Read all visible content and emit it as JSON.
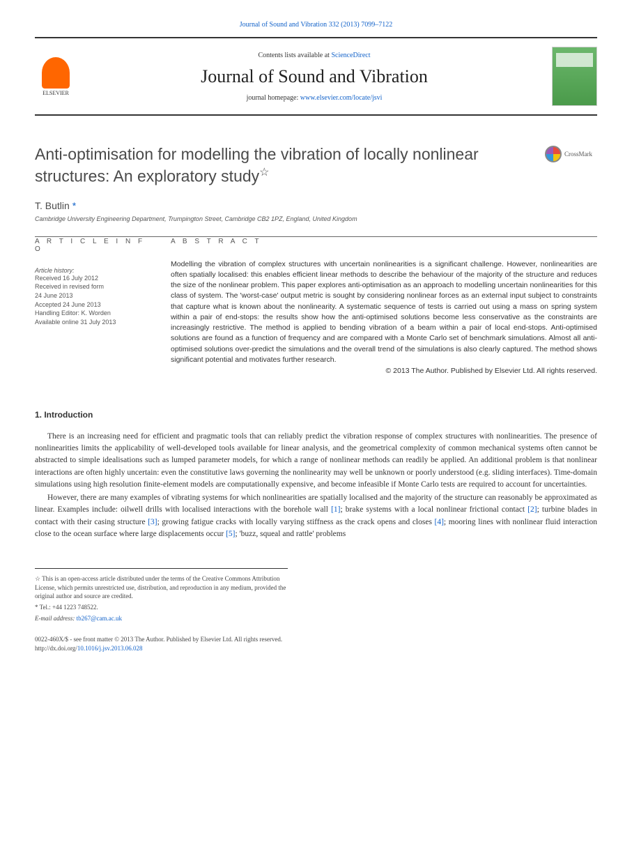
{
  "top_link": "Journal of Sound and Vibration 332 (2013) 7099–7122",
  "header": {
    "contents_prefix": "Contents lists available at ",
    "contents_link": "ScienceDirect",
    "journal_name": "Journal of Sound and Vibration",
    "homepage_prefix": "journal homepage: ",
    "homepage_link": "www.elsevier.com/locate/jsvi",
    "publisher": "ELSEVIER",
    "cover_label": "JOURNAL OF SOUND AND VIBRATION"
  },
  "article": {
    "title": "Anti-optimisation for modelling the vibration of locally nonlinear structures: An exploratory study",
    "title_star": "☆",
    "crossmark_label": "CrossMark",
    "author": "T. Butlin",
    "author_mark": "*",
    "affiliation": "Cambridge University Engineering Department, Trumpington Street, Cambridge CB2 1PZ, England, United Kingdom"
  },
  "info": {
    "heading": "A R T I C L E   I N F O",
    "history_label": "Article history:",
    "received": "Received 16 July 2012",
    "revised1": "Received in revised form",
    "revised2": "24 June 2013",
    "accepted": "Accepted 24 June 2013",
    "editor": "Handling Editor: K. Worden",
    "online": "Available online 31 July 2013"
  },
  "abstract": {
    "heading": "A B S T R A C T",
    "text": "Modelling the vibration of complex structures with uncertain nonlinearities is a significant challenge. However, nonlinearities are often spatially localised: this enables efficient linear methods to describe the behaviour of the majority of the structure and reduces the size of the nonlinear problem. This paper explores anti-optimisation as an approach to modelling uncertain nonlinearities for this class of system. The 'worst-case' output metric is sought by considering nonlinear forces as an external input subject to constraints that capture what is known about the nonlinearity. A systematic sequence of tests is carried out using a mass on spring system within a pair of end-stops: the results show how the anti-optimised solutions become less conservative as the constraints are increasingly restrictive. The method is applied to bending vibration of a beam within a pair of local end-stops. Anti-optimised solutions are found as a function of frequency and are compared with a Monte Carlo set of benchmark simulations. Almost all anti-optimised solutions over-predict the simulations and the overall trend of the simulations is also clearly captured. The method shows significant potential and motivates further research.",
    "copyright": "© 2013 The Author. Published by Elsevier Ltd. All rights reserved."
  },
  "sections": {
    "intro_heading": "1.  Introduction",
    "intro_p1_a": "There is an increasing need for efficient and pragmatic tools that can reliably predict the vibration response of complex structures with nonlinearities. The presence of nonlinearities limits the applicability of well-developed tools available for linear analysis, and the geometrical complexity of common mechanical systems often cannot be abstracted to simple idealisations such as lumped parameter models, for which a range of nonlinear methods can readily be applied. An additional problem is that nonlinear interactions are often highly uncertain: even the constitutive laws governing the nonlinearity may well be unknown or poorly understood (e.g. sliding interfaces). Time-domain simulations using high resolution finite-element models are computationally expensive, and become infeasible if Monte Carlo tests are required to account for uncertainties.",
    "intro_p2_a": "However, there are many examples of vibrating systems for which nonlinearities are spatially localised and the majority of the structure can reasonably be approximated as linear. Examples include: oilwell drills with localised interactions with the borehole wall ",
    "intro_p2_b": "; brake systems with a local nonlinear frictional contact ",
    "intro_p2_c": "; turbine blades in contact with their casing structure ",
    "intro_p2_d": "; growing fatigue cracks with locally varying stiffness as the crack opens and closes ",
    "intro_p2_e": "; mooring lines with nonlinear fluid interaction close to the ocean surface where large displacements occur ",
    "intro_p2_f": "; 'buzz, squeal and rattle' problems",
    "ref1": "[1]",
    "ref2": "[2]",
    "ref3": "[3]",
    "ref4": "[4]",
    "ref5": "[5]"
  },
  "footnotes": {
    "open_access": "☆ This is an open-access article distributed under the terms of the Creative Commons Attribution License, which permits unrestricted use, distribution, and reproduction in any medium, provided the original author and source are credited.",
    "tel_label": "* Tel.: ",
    "tel": "+44 1223 748522.",
    "email_label": "E-mail address: ",
    "email": "tb267@cam.ac.uk"
  },
  "footer": {
    "issn_line": "0022-460X/$ - see front matter © 2013 The Author. Published by Elsevier Ltd. All rights reserved.",
    "doi_label": "http://dx.doi.org/",
    "doi": "10.1016/j.jsv.2013.06.028"
  }
}
